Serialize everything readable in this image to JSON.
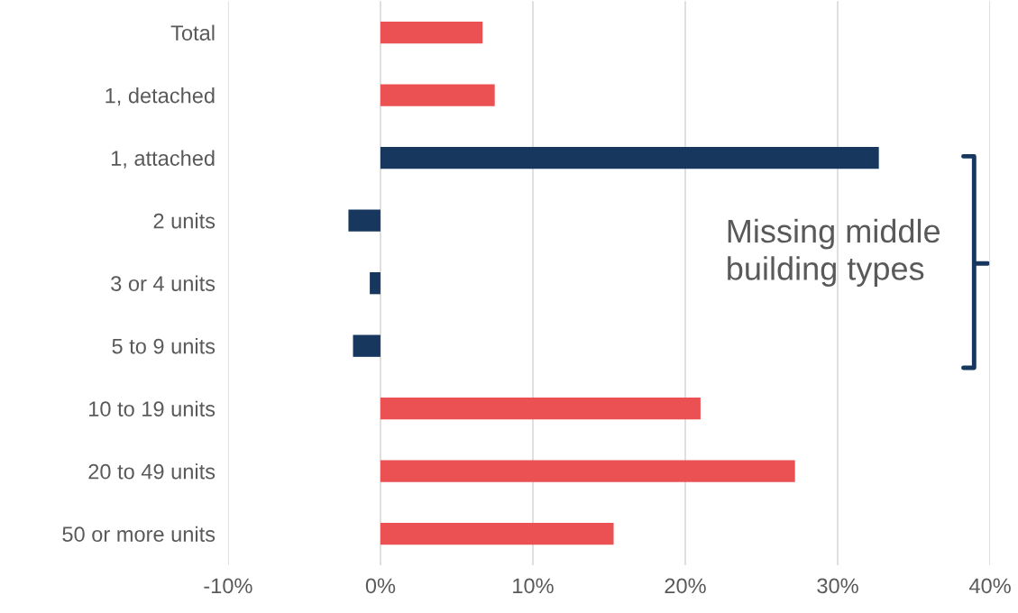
{
  "chart_data": {
    "type": "bar",
    "orientation": "horizontal",
    "categories": [
      "Total",
      "1, detached",
      "1, attached",
      "2 units",
      "3 or 4 units",
      "5 to 9 units",
      "10 to 19 units",
      "20 to 49 units",
      "50 or more units"
    ],
    "values": [
      6.7,
      7.5,
      32.7,
      -2.1,
      -0.7,
      -1.8,
      21.0,
      27.2,
      15.3
    ],
    "colors": [
      "#eb5153",
      "#eb5153",
      "#17375e",
      "#17375e",
      "#17375e",
      "#17375e",
      "#eb5153",
      "#eb5153",
      "#eb5153"
    ],
    "xlim": [
      -10,
      40
    ],
    "xticks": [
      {
        "value": -10,
        "label": "-10%"
      },
      {
        "value": 0,
        "label": "0%"
      },
      {
        "value": 10,
        "label": "10%"
      },
      {
        "value": 20,
        "label": "20%"
      },
      {
        "value": 30,
        "label": "30%"
      },
      {
        "value": 40,
        "label": "40%"
      }
    ],
    "grid": "x",
    "annotations": [
      "Missing middle\nbuilding types"
    ]
  }
}
